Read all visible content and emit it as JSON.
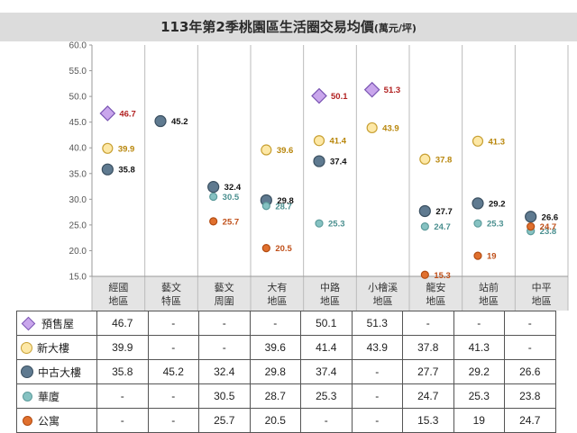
{
  "chart_data": {
    "type": "scatter",
    "title": "113年第2季桃園區生活圈交易均價",
    "unit": "(萬元/坪)",
    "ylim": [
      15.0,
      60.0
    ],
    "yticks": [
      "15.0",
      "20.0",
      "25.0",
      "30.0",
      "35.0",
      "40.0",
      "45.0",
      "50.0",
      "55.0",
      "60.0"
    ],
    "categories": [
      {
        "line1": "經國",
        "line2": "地區"
      },
      {
        "line1": "藝文",
        "line2": "特區"
      },
      {
        "line1": "藝文",
        "line2": "周圍"
      },
      {
        "line1": "大有",
        "line2": "地區"
      },
      {
        "line1": "中路",
        "line2": "地區"
      },
      {
        "line1": "小檜溪",
        "line2": "地區"
      },
      {
        "line1": "龍安",
        "line2": "地區"
      },
      {
        "line1": "站前",
        "line2": "地區"
      },
      {
        "line1": "中平",
        "line2": "地區"
      }
    ],
    "series": [
      {
        "name": "預售屋",
        "marker": "diamond",
        "fill": "#c9a6ec",
        "stroke": "#7a55b3",
        "label_color": "#b22222",
        "values": [
          46.7,
          null,
          null,
          null,
          50.1,
          51.3,
          null,
          null,
          null
        ],
        "table": [
          "46.7",
          "-",
          "-",
          "-",
          "50.1",
          "51.3",
          "-",
          "-",
          "-"
        ]
      },
      {
        "name": "新大樓",
        "marker": "circle",
        "fill": "#fde8a6",
        "stroke": "#c8a033",
        "label_color": "#b8860b",
        "values": [
          39.9,
          null,
          null,
          39.6,
          41.4,
          43.9,
          37.8,
          41.3,
          null
        ],
        "table": [
          "39.9",
          "-",
          "-",
          "39.6",
          "41.4",
          "43.9",
          "37.8",
          "41.3",
          "-"
        ]
      },
      {
        "name": "中古大樓",
        "marker": "circle",
        "fill": "#5f7a90",
        "stroke": "#3a4f60",
        "label_color": "#111111",
        "values": [
          35.8,
          45.2,
          32.4,
          29.8,
          37.4,
          null,
          27.7,
          29.2,
          26.6
        ],
        "table": [
          "35.8",
          "45.2",
          "32.4",
          "29.8",
          "37.4",
          "-",
          "27.7",
          "29.2",
          "26.6"
        ]
      },
      {
        "name": "華廈",
        "marker": "circle",
        "fill": "#86c2c2",
        "stroke": "#5c9b9b",
        "label_color": "#4a8f8f",
        "values": [
          null,
          null,
          30.5,
          28.7,
          25.3,
          null,
          24.7,
          25.3,
          23.8
        ],
        "table": [
          "-",
          "-",
          "30.5",
          "28.7",
          "25.3",
          "-",
          "24.7",
          "25.3",
          "23.8"
        ]
      },
      {
        "name": "公寓",
        "marker": "circle",
        "fill": "#e0702e",
        "stroke": "#b34c12",
        "label_color": "#c0501a",
        "values": [
          null,
          null,
          25.7,
          20.5,
          null,
          null,
          15.3,
          19,
          24.7
        ],
        "table": [
          "-",
          "-",
          "25.7",
          "20.5",
          "-",
          "-",
          "15.3",
          "19",
          "24.7"
        ]
      }
    ]
  }
}
